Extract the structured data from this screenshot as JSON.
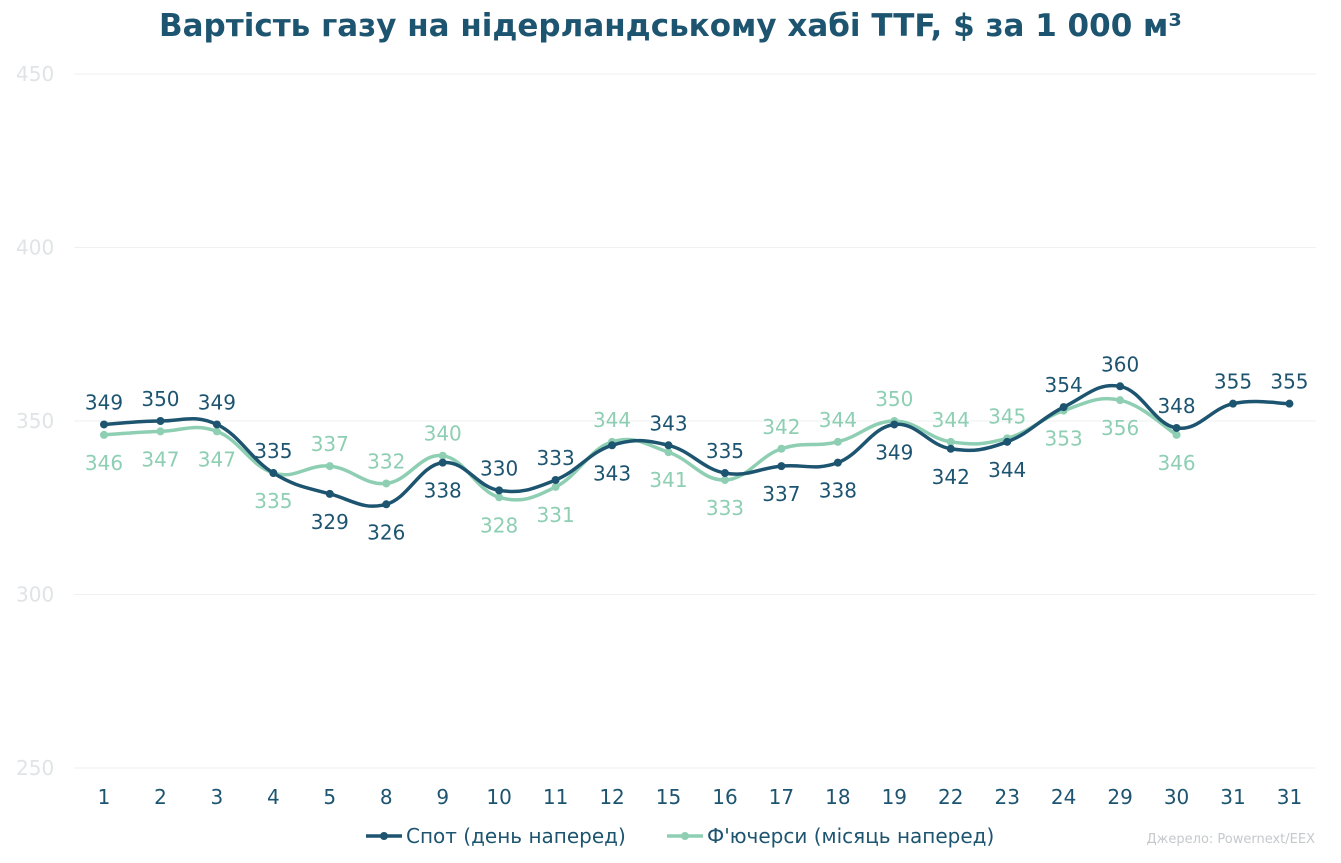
{
  "chart_data": {
    "type": "line",
    "title": "Вартість газу на нідерландському хабі TTF, $ за 1 000 м³",
    "categories": [
      "1",
      "2",
      "3",
      "4",
      "5",
      "8",
      "9",
      "10",
      "11",
      "12",
      "15",
      "16",
      "17",
      "18",
      "19",
      "22",
      "23",
      "24",
      "29",
      "30",
      "31",
      "31"
    ],
    "series": [
      {
        "name": "Спот (день наперед)",
        "color": "#1d5470",
        "values": [
          349,
          350,
          349,
          335,
          329,
          326,
          338,
          330,
          333,
          343,
          343,
          335,
          337,
          338,
          349,
          342,
          344,
          354,
          360,
          348,
          355,
          355
        ],
        "label_pos": [
          "above",
          "above",
          "above",
          "above",
          "below",
          "below",
          "below",
          "above",
          "above",
          "below",
          "above",
          "above",
          "below",
          "below",
          "below",
          "below",
          "below",
          "above",
          "above",
          "above",
          "above",
          "above"
        ]
      },
      {
        "name": "Ф'ючерси (місяць наперед)",
        "color": "#8ecfb3",
        "values": [
          346,
          347,
          347,
          335,
          337,
          332,
          340,
          328,
          331,
          344,
          341,
          333,
          342,
          344,
          350,
          344,
          345,
          353,
          356,
          346,
          null,
          null
        ],
        "label_pos": [
          "below",
          "below",
          "below",
          "below",
          "above",
          "above",
          "above",
          "below",
          "below",
          "above",
          "below",
          "below",
          "above",
          "above",
          "above",
          "above",
          "above",
          "below",
          "below",
          "below",
          null,
          null
        ]
      }
    ],
    "ylim": [
      250,
      450
    ],
    "yticks": [
      250,
      300,
      350,
      400,
      450
    ],
    "xlabel": "",
    "ylabel": "",
    "grid": true,
    "legend": "bottom-center",
    "source": "Джерело: Powernext/EEX"
  }
}
